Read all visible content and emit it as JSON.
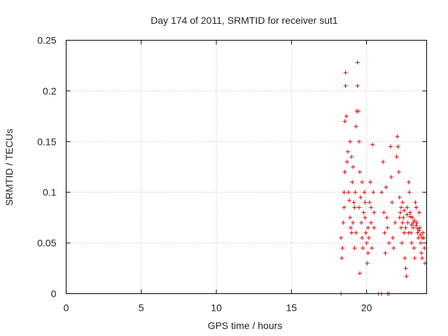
{
  "chart_data": {
    "type": "scatter",
    "title": "Day 174 of 2011, SRMTID for receiver sut1",
    "xlabel": "GPS time / hours",
    "ylabel": "SRMTID / TECUs",
    "xlim": [
      0,
      24
    ],
    "ylim": [
      0,
      0.25
    ],
    "xticks": [
      0,
      5,
      10,
      15,
      20
    ],
    "xtick_labels": [
      "0",
      "5",
      "10",
      "15",
      "20"
    ],
    "yticks": [
      0,
      0.05,
      0.1,
      0.15,
      0.2,
      0.25
    ],
    "ytick_labels": [
      "0",
      "0.05",
      "0.1",
      "0.15",
      "0.2",
      "0.25"
    ],
    "grid": true,
    "marker": "+",
    "color": "#e00000",
    "series": [
      {
        "name": "SRMTID",
        "points": [
          [
            18.3,
            0.0
          ],
          [
            20.8,
            0.0
          ],
          [
            21.0,
            0.0
          ],
          [
            21.4,
            0.0
          ],
          [
            21.5,
            0.0
          ],
          [
            18.3,
            0.055
          ],
          [
            18.35,
            0.035
          ],
          [
            18.4,
            0.045
          ],
          [
            18.45,
            0.07
          ],
          [
            18.5,
            0.085
          ],
          [
            18.5,
            0.1
          ],
          [
            18.55,
            0.12
          ],
          [
            18.55,
            0.17
          ],
          [
            18.6,
            0.205
          ],
          [
            18.6,
            0.218
          ],
          [
            18.65,
            0.175
          ],
          [
            18.7,
            0.13
          ],
          [
            18.75,
            0.14
          ],
          [
            18.8,
            0.1
          ],
          [
            18.85,
            0.092
          ],
          [
            18.9,
            0.075
          ],
          [
            18.95,
            0.065
          ],
          [
            19.0,
            0.06
          ],
          [
            19.05,
            0.11
          ],
          [
            19.1,
            0.125
          ],
          [
            19.15,
            0.09
          ],
          [
            19.2,
            0.085
          ],
          [
            19.25,
            0.1
          ],
          [
            19.3,
            0.165
          ],
          [
            19.35,
            0.18
          ],
          [
            19.4,
            0.228
          ],
          [
            19.4,
            0.205
          ],
          [
            19.45,
            0.18
          ],
          [
            19.5,
            0.15
          ],
          [
            19.55,
            0.12
          ],
          [
            19.6,
            0.095
          ],
          [
            19.65,
            0.07
          ],
          [
            19.7,
            0.055
          ],
          [
            19.75,
            0.045
          ],
          [
            19.8,
            0.08
          ],
          [
            19.85,
            0.1
          ],
          [
            19.9,
            0.075
          ],
          [
            19.95,
            0.06
          ],
          [
            20.0,
            0.05
          ],
          [
            20.05,
            0.03
          ],
          [
            20.1,
            0.04
          ],
          [
            20.15,
            0.055
          ],
          [
            20.2,
            0.09
          ],
          [
            20.25,
            0.11
          ],
          [
            20.3,
            0.07
          ],
          [
            20.35,
            0.045
          ],
          [
            20.4,
            0.147
          ],
          [
            20.45,
            0.1
          ],
          [
            20.5,
            0.065
          ],
          [
            19.55,
            0.02
          ],
          [
            18.9,
            0.15
          ],
          [
            19.0,
            0.135
          ],
          [
            19.1,
            0.07
          ],
          [
            19.2,
            0.045
          ],
          [
            19.3,
            0.06
          ],
          [
            19.5,
            0.085
          ],
          [
            19.7,
            0.11
          ],
          [
            19.9,
            0.09
          ],
          [
            20.1,
            0.065
          ],
          [
            20.3,
            0.085
          ],
          [
            20.5,
            0.08
          ],
          [
            21.0,
            0.1
          ],
          [
            21.1,
            0.13
          ],
          [
            21.15,
            0.08
          ],
          [
            21.2,
            0.06
          ],
          [
            21.25,
            0.04
          ],
          [
            21.3,
            0.105
          ],
          [
            21.35,
            0.075
          ],
          [
            21.4,
            0.065
          ],
          [
            21.5,
            0.05
          ],
          [
            21.6,
            0.145
          ],
          [
            21.65,
            0.115
          ],
          [
            21.7,
            0.09
          ],
          [
            21.75,
            0.055
          ],
          [
            21.8,
            0.045
          ],
          [
            21.9,
            0.07
          ],
          [
            22.0,
            0.135
          ],
          [
            22.05,
            0.155
          ],
          [
            22.1,
            0.145
          ],
          [
            22.15,
            0.12
          ],
          [
            22.2,
            0.095
          ],
          [
            22.25,
            0.08
          ],
          [
            22.3,
            0.065
          ],
          [
            22.35,
            0.05
          ],
          [
            22.4,
            0.09
          ],
          [
            22.45,
            0.075
          ],
          [
            22.5,
            0.06
          ],
          [
            22.55,
            0.035
          ],
          [
            22.6,
            0.025
          ],
          [
            22.65,
            0.017
          ],
          [
            22.7,
            0.085
          ],
          [
            22.75,
            0.07
          ],
          [
            22.8,
            0.11
          ],
          [
            22.85,
            0.1
          ],
          [
            22.9,
            0.08
          ],
          [
            22.95,
            0.06
          ],
          [
            23.0,
            0.05
          ],
          [
            23.05,
            0.075
          ],
          [
            23.1,
            0.065
          ],
          [
            23.15,
            0.045
          ],
          [
            23.2,
            0.035
          ],
          [
            23.25,
            0.09
          ],
          [
            23.3,
            0.085
          ],
          [
            23.35,
            0.07
          ],
          [
            23.4,
            0.06
          ],
          [
            23.45,
            0.055
          ],
          [
            23.5,
            0.08
          ],
          [
            23.55,
            0.065
          ],
          [
            23.6,
            0.05
          ],
          [
            23.65,
            0.04
          ],
          [
            23.7,
            0.035
          ],
          [
            23.75,
            0.06
          ],
          [
            23.8,
            0.055
          ],
          [
            23.85,
            0.045
          ],
          [
            23.9,
            0.03
          ],
          [
            22.2,
            0.075
          ],
          [
            22.4,
            0.07
          ],
          [
            22.6,
            0.065
          ],
          [
            22.8,
            0.06
          ],
          [
            23.0,
            0.068
          ],
          [
            23.2,
            0.072
          ],
          [
            23.4,
            0.064
          ],
          [
            23.6,
            0.058
          ],
          [
            22.3,
            0.085
          ],
          [
            22.5,
            0.082
          ],
          [
            22.7,
            0.078
          ],
          [
            22.9,
            0.076
          ],
          [
            23.1,
            0.07
          ],
          [
            23.3,
            0.067
          ],
          [
            23.5,
            0.062
          ],
          [
            23.7,
            0.055
          ]
        ]
      }
    ]
  }
}
